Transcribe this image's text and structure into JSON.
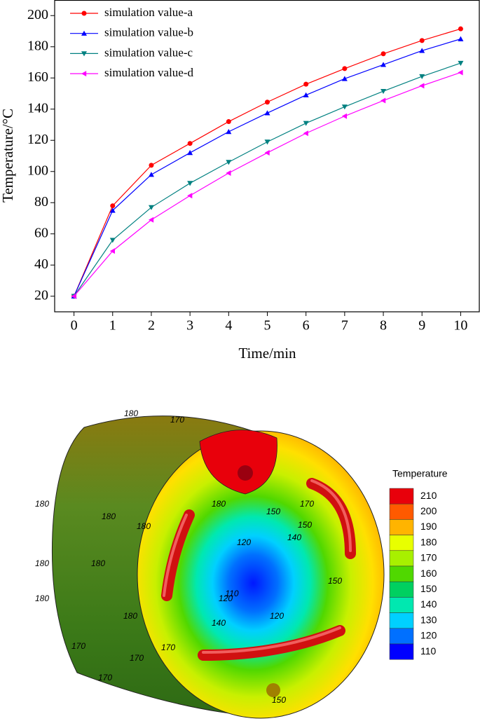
{
  "chart_data": [
    {
      "type": "line",
      "x_label": "Time/min",
      "y_label": "Temperature/°C",
      "x": [
        0,
        1,
        2,
        3,
        4,
        5,
        6,
        7,
        8,
        9,
        10
      ],
      "series": [
        {
          "name": "simulation value-a",
          "color": "#ff0000",
          "marker": "circle",
          "values": [
            20,
            78,
            104,
            118,
            132,
            144.5,
            156,
            166,
            175.5,
            184,
            191.5
          ]
        },
        {
          "name": "simulation value-b",
          "color": "#0000ff",
          "marker": "triangle-up",
          "values": [
            20,
            75,
            98,
            112,
            125.5,
            137.5,
            149,
            159.5,
            168.5,
            177.5,
            185
          ]
        },
        {
          "name": "simulation value-c",
          "color": "#008080",
          "marker": "triangle-down",
          "values": [
            20,
            56,
            77,
            92.5,
            106,
            119,
            131,
            141.5,
            151.5,
            161,
            169.5
          ]
        },
        {
          "name": "simulation value-d",
          "color": "#ff00ff",
          "marker": "triangle-left",
          "values": [
            20,
            49,
            69,
            84.5,
            99,
            112,
            124.5,
            135.5,
            145.5,
            155,
            163.5
          ]
        }
      ],
      "xlim": [
        -0.5,
        10.5
      ],
      "ylim": [
        10,
        210
      ],
      "xticks": [
        0,
        1,
        2,
        3,
        4,
        5,
        6,
        7,
        8,
        9,
        10
      ],
      "yticks": [
        20,
        40,
        60,
        80,
        100,
        120,
        140,
        160,
        180,
        200
      ],
      "grid": false,
      "legend": "upper left"
    },
    {
      "type": "contour",
      "title": "Temperature",
      "levels": [
        210,
        200,
        190,
        180,
        170,
        160,
        150,
        140,
        130,
        120,
        110
      ],
      "colors": [
        "#e8000b",
        "#ff5a00",
        "#ffb400",
        "#e8ff00",
        "#a8f000",
        "#50d800",
        "#00d060",
        "#00e8b0",
        "#00d0ff",
        "#0070ff",
        "#0000ff"
      ],
      "contour_labels": [
        180,
        170,
        180,
        180,
        180,
        180,
        180,
        180,
        180,
        170,
        170,
        170,
        180,
        150,
        170,
        150,
        140,
        120,
        150,
        110,
        120,
        140,
        120,
        170,
        150
      ]
    }
  ]
}
